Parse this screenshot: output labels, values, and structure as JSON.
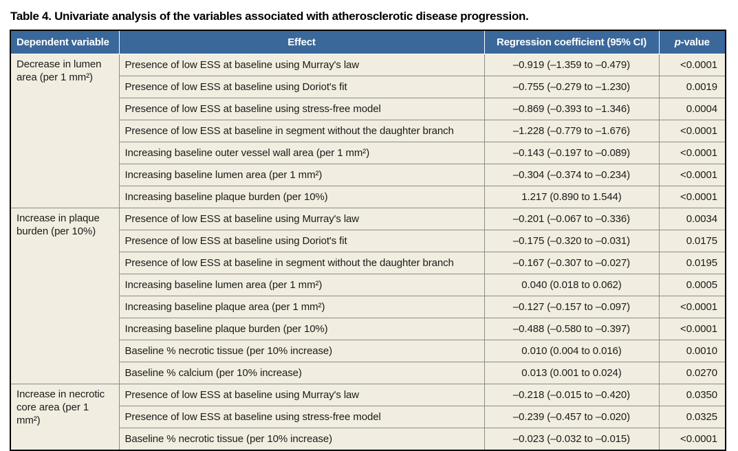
{
  "title": "Table 4. Univariate analysis of the variables associated with atherosclerotic disease progression.",
  "colors": {
    "header_bg": "#3a689b",
    "header_text": "#ffffff",
    "body_bg": "#f1ede0",
    "outer_border": "#000000",
    "inner_border": "#8a8a8a"
  },
  "table": {
    "headers": {
      "dependent_variable": "Dependent variable",
      "effect": "Effect",
      "coefficient": "Regression coefficient (95% CI)",
      "p_italic": "p",
      "p_rest": "-value"
    },
    "sections": [
      {
        "dependent_variable": "Decrease in lumen area (per 1 mm²)",
        "rows": [
          {
            "effect": "Presence of low ESS at baseline using Murray's law",
            "coefficient": "–0.919 (–1.359 to –0.479)",
            "p_value": "<0.0001"
          },
          {
            "effect": "Presence of low ESS at baseline using Doriot's fit",
            "coefficient": "–0.755 (–0.279 to –1.230)",
            "p_value": "0.0019"
          },
          {
            "effect": "Presence of low ESS at baseline using stress-free model",
            "coefficient": "–0.869 (–0.393 to –1.346)",
            "p_value": "0.0004"
          },
          {
            "effect": "Presence of low ESS at baseline in segment without the daughter branch",
            "coefficient": "–1.228 (–0.779 to –1.676)",
            "p_value": "<0.0001"
          },
          {
            "effect": "Increasing baseline outer vessel wall area (per 1 mm²)",
            "coefficient": "–0.143 (–0.197 to –0.089)",
            "p_value": "<0.0001"
          },
          {
            "effect": "Increasing baseline lumen area (per 1 mm²)",
            "coefficient": "–0.304 (–0.374 to –0.234)",
            "p_value": "<0.0001"
          },
          {
            "effect": "Increasing baseline plaque burden (per 10%)",
            "coefficient": "1.217 (0.890 to 1.544)",
            "p_value": "<0.0001"
          }
        ]
      },
      {
        "dependent_variable": "Increase in plaque burden (per 10%)",
        "rows": [
          {
            "effect": "Presence of low ESS at baseline using Murray's law",
            "coefficient": "–0.201 (–0.067 to –0.336)",
            "p_value": "0.0034"
          },
          {
            "effect": "Presence of low ESS at baseline using Doriot's fit",
            "coefficient": "–0.175 (–0.320 to –0.031)",
            "p_value": "0.0175"
          },
          {
            "effect": "Presence of low ESS at baseline in segment without the daughter branch",
            "coefficient": "–0.167 (–0.307 to –0.027)",
            "p_value": "0.0195"
          },
          {
            "effect": "Increasing baseline lumen area (per 1 mm²)",
            "coefficient": "0.040 (0.018 to 0.062)",
            "p_value": "0.0005"
          },
          {
            "effect": "Increasing baseline plaque area (per 1 mm²)",
            "coefficient": "–0.127 (–0.157 to –0.097)",
            "p_value": "<0.0001"
          },
          {
            "effect": "Increasing baseline plaque burden (per 10%)",
            "coefficient": "–0.488 (–0.580 to –0.397)",
            "p_value": "<0.0001"
          },
          {
            "effect": "Baseline % necrotic tissue (per 10% increase)",
            "coefficient": "0.010 (0.004 to 0.016)",
            "p_value": "0.0010"
          },
          {
            "effect": "Baseline % calcium (per 10% increase)",
            "coefficient": "0.013 (0.001 to 0.024)",
            "p_value": "0.0270"
          }
        ]
      },
      {
        "dependent_variable": "Increase in necrotic core area (per 1 mm²)",
        "rows": [
          {
            "effect": "Presence of low ESS at baseline using Murray's law",
            "coefficient": "–0.218 (–0.015 to –0.420)",
            "p_value": "0.0350"
          },
          {
            "effect": "Presence of low ESS at baseline using stress-free model",
            "coefficient": "–0.239 (–0.457 to –0.020)",
            "p_value": "0.0325"
          },
          {
            "effect": "Baseline % necrotic tissue (per 10% increase)",
            "coefficient": "–0.023 (–0.032 to –0.015)",
            "p_value": "<0.0001"
          }
        ]
      }
    ]
  }
}
